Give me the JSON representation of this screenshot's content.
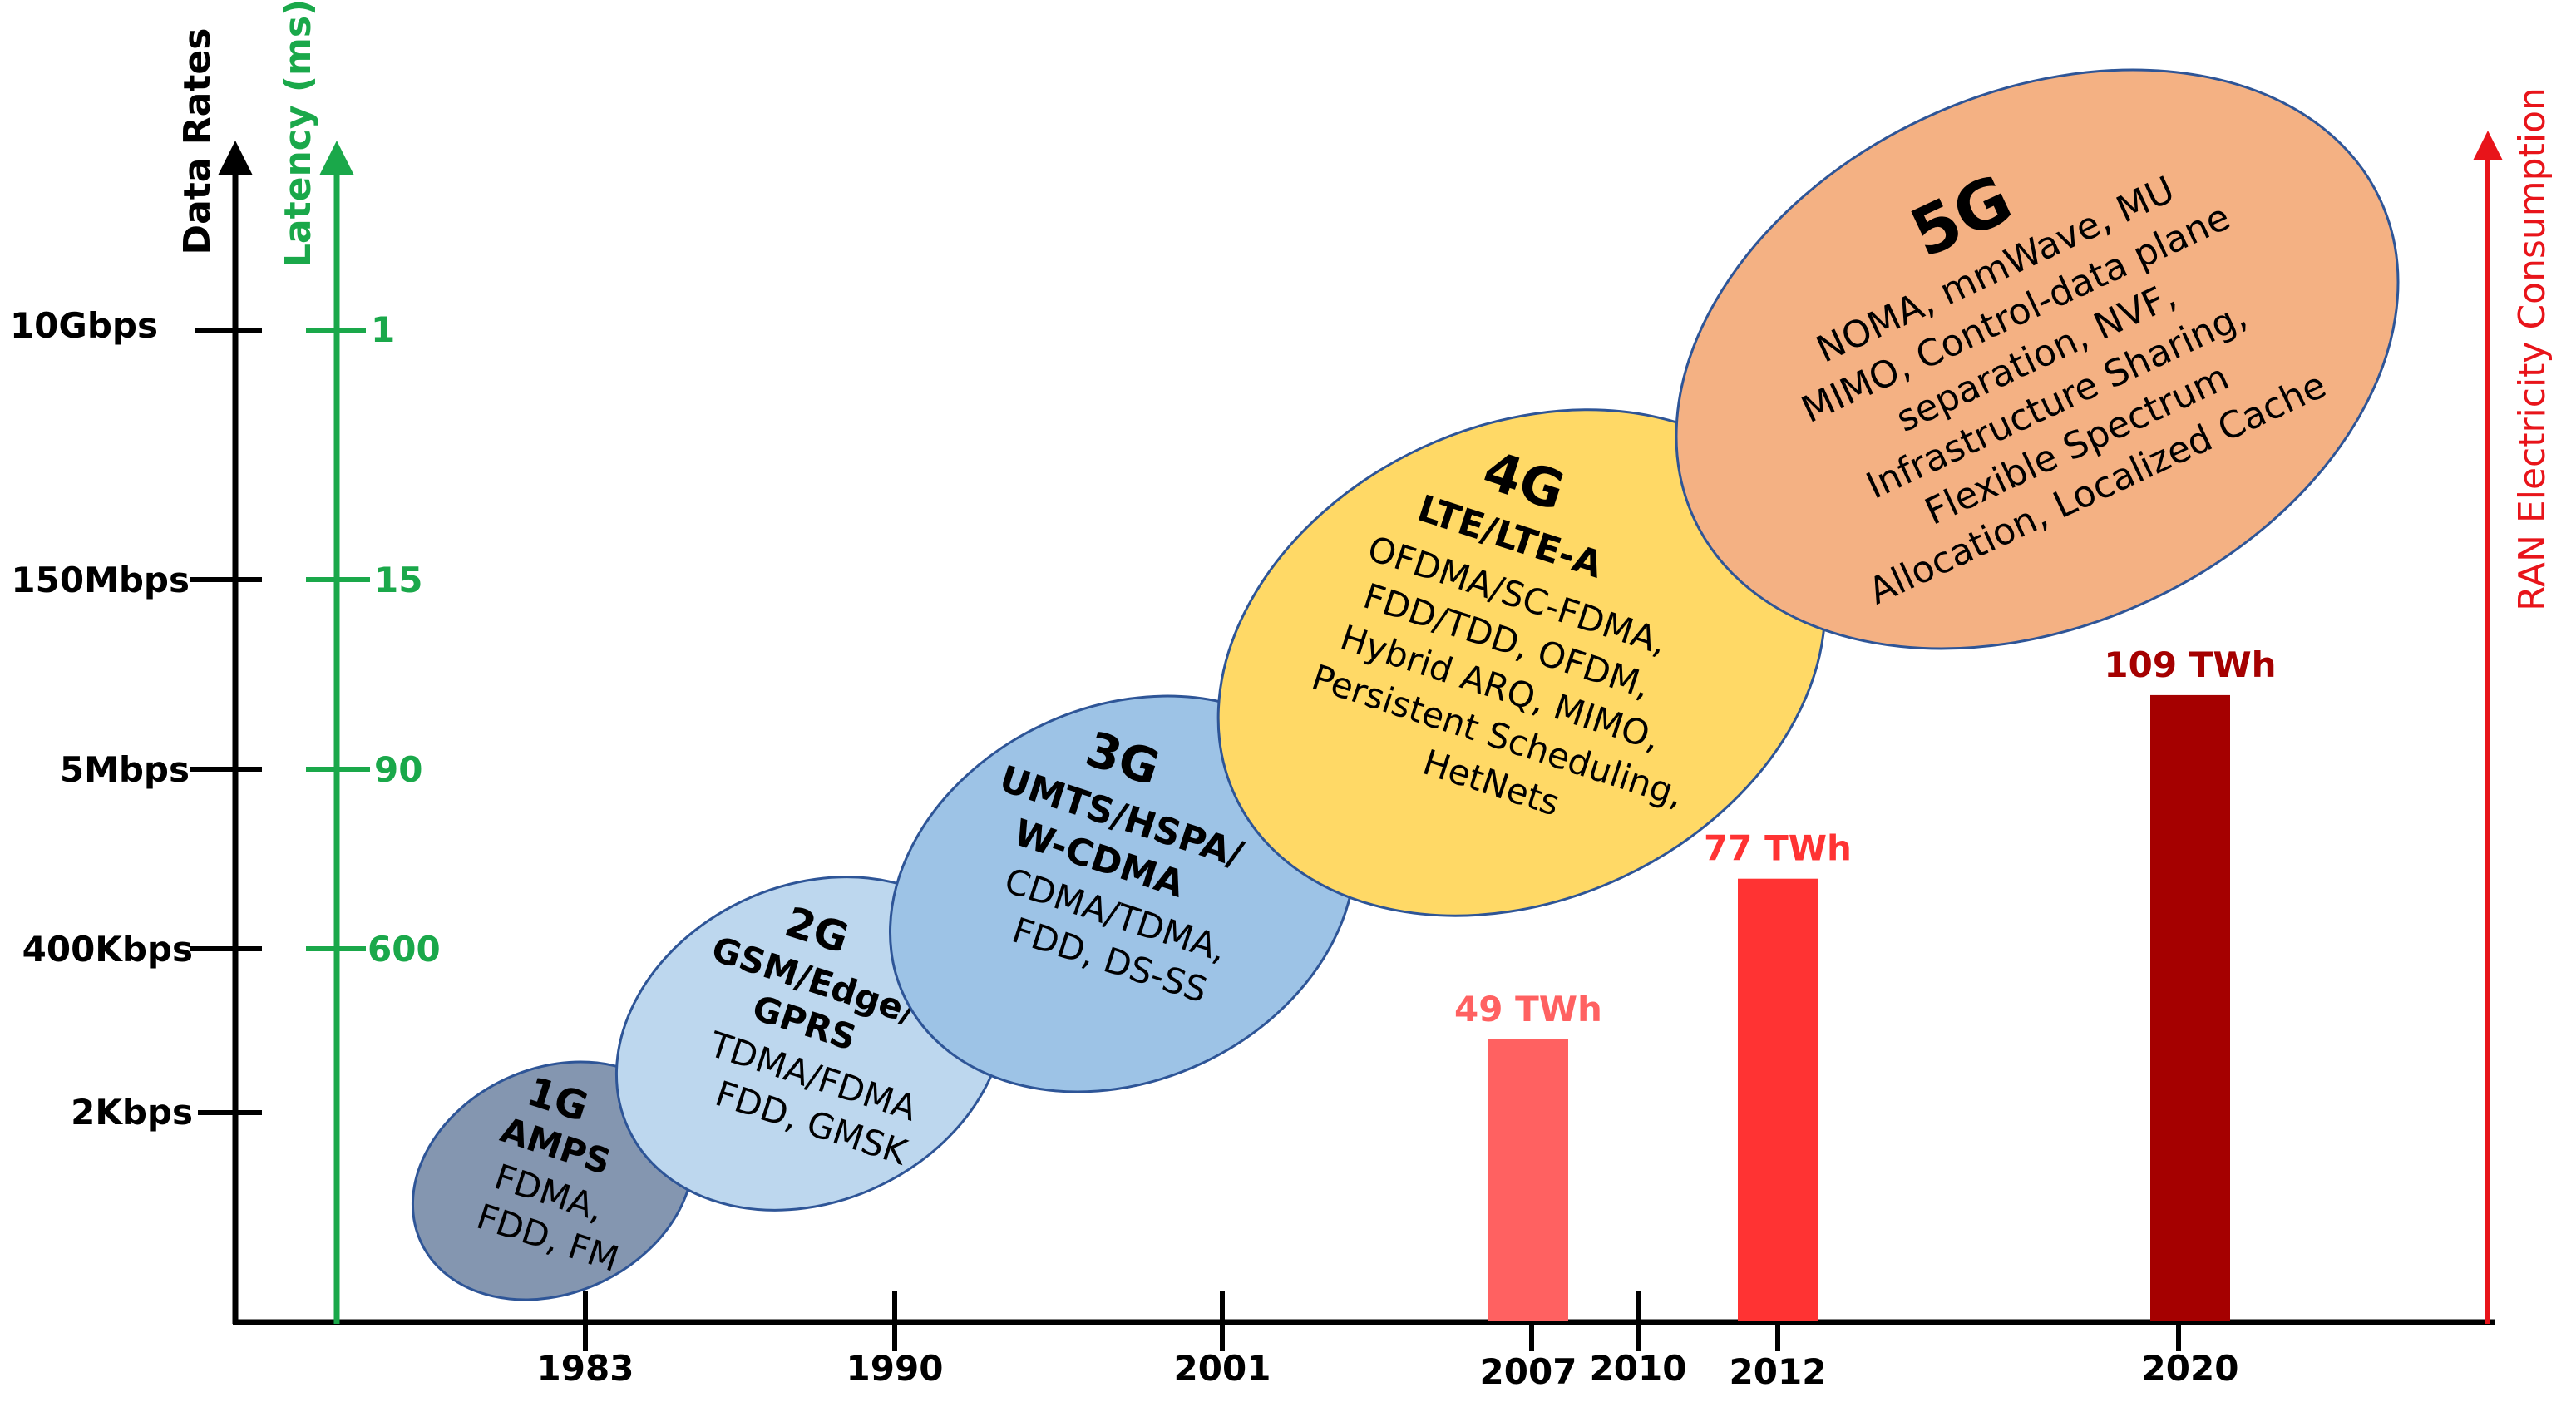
{
  "axes": {
    "data_rates": {
      "title": "Data Rates",
      "ticks": [
        "10Gbps",
        "150Mbps",
        "5Mbps",
        "400Kbps",
        "2Kbps"
      ]
    },
    "latency": {
      "title": "Latency (ms)",
      "ticks": [
        "1",
        "15",
        "90",
        "600"
      ],
      "color": "#1aa84a"
    },
    "energy": {
      "title": "RAN Electricity Consumption",
      "color": "#e8141a"
    },
    "years": [
      "1983",
      "1990",
      "2001",
      "2007",
      "2010",
      "2012",
      "2020"
    ]
  },
  "generations": [
    {
      "name": "1G",
      "tech": "AMPS",
      "details": [
        "FDMA,",
        "FDD, FM"
      ],
      "color": "#8496b0"
    },
    {
      "name": "2G",
      "tech": [
        "GSM/Edge/",
        "GPRS"
      ],
      "details": [
        "TDMA/FDMA",
        "FDD, GMSK"
      ],
      "color": "#bdd7ee"
    },
    {
      "name": "3G",
      "tech": [
        "UMTS/HSPA/",
        "W-CDMA"
      ],
      "details": [
        "CDMA/TDMA,",
        "FDD, DS-SS"
      ],
      "color": "#9dc3e6"
    },
    {
      "name": "4G",
      "tech": "LTE/LTE-A",
      "details": [
        "OFDMA/SC-FDMA,",
        "FDD/TDD, OFDM,",
        "Hybrid ARQ, MIMO,",
        "Persistent Scheduling,",
        "HetNets"
      ],
      "color": "#ffd966"
    },
    {
      "name": "5G",
      "details": [
        "NOMA, mmWave, MU",
        "MIMO, Control-data plane",
        "separation, NVF,",
        "Infrastructure Sharing,",
        "Flexible Spectrum",
        "Allocation, Localized Cache"
      ],
      "color": "#f4b183"
    }
  ],
  "chart_data": {
    "type": "bar",
    "categories": [
      "2007",
      "2012",
      "2020"
    ],
    "series": [
      {
        "values": [
          49,
          77,
          109
        ]
      }
    ],
    "data_labels": [
      "49 TWh",
      "77 TWh",
      "109 TWh"
    ],
    "colors": [
      "#ff6161",
      "#ff3333",
      "#a50000"
    ]
  }
}
